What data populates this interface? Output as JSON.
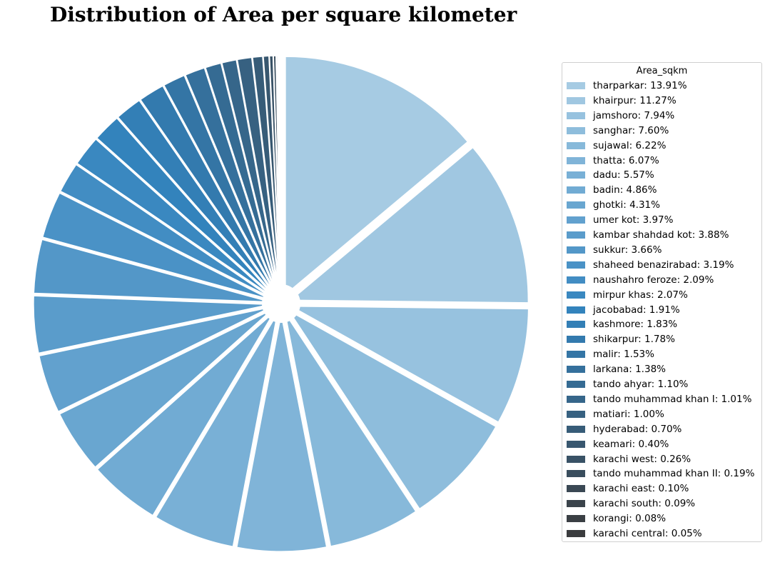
{
  "chart_data": {
    "type": "pie",
    "title": "Distribution of Area per square kilometer",
    "legend_title": "Area_sqkm",
    "legend_placement": "right",
    "slices": [
      {
        "label": "tharparkar",
        "pct_text": "13.91%",
        "value": 13.91,
        "color": "#a6cbe3"
      },
      {
        "label": "khairpur",
        "pct_text": "11.27%",
        "value": 11.27,
        "color": "#a0c7e1"
      },
      {
        "label": "jamshoro",
        "pct_text": "7.94%",
        "value": 7.94,
        "color": "#97c2df"
      },
      {
        "label": "sanghar",
        "pct_text": "7.60%",
        "value": 7.6,
        "color": "#8ebddc"
      },
      {
        "label": "sujawal",
        "pct_text": "6.22%",
        "value": 6.22,
        "color": "#87b9da"
      },
      {
        "label": "thatta",
        "pct_text": "6.07%",
        "value": 6.07,
        "color": "#80b4d8"
      },
      {
        "label": "dadu",
        "pct_text": "5.57%",
        "value": 5.57,
        "color": "#79b0d6"
      },
      {
        "label": "badin",
        "pct_text": "4.86%",
        "value": 4.86,
        "color": "#71abd3"
      },
      {
        "label": "ghotki",
        "pct_text": "4.31%",
        "value": 4.31,
        "color": "#69a6d0"
      },
      {
        "label": "umer kot",
        "pct_text": "3.97%",
        "value": 3.97,
        "color": "#62a1ce"
      },
      {
        "label": "kambar shahdad kot",
        "pct_text": "3.88%",
        "value": 3.88,
        "color": "#5a9ccb"
      },
      {
        "label": "sukkur",
        "pct_text": "3.66%",
        "value": 3.66,
        "color": "#5397c8"
      },
      {
        "label": "shaheed benazirabad",
        "pct_text": "3.19%",
        "value": 3.19,
        "color": "#4a92c6"
      },
      {
        "label": "naushahro feroze",
        "pct_text": "2.09%",
        "value": 2.09,
        "color": "#428dc3"
      },
      {
        "label": "mirpur khas",
        "pct_text": "2.07%",
        "value": 2.07,
        "color": "#3a88c0"
      },
      {
        "label": "jacobabad",
        "pct_text": "1.91%",
        "value": 1.91,
        "color": "#3383bc"
      },
      {
        "label": "kashmore",
        "pct_text": "1.83%",
        "value": 1.83,
        "color": "#337fb6"
      },
      {
        "label": "shikarpur",
        "pct_text": "1.78%",
        "value": 1.78,
        "color": "#337aae"
      },
      {
        "label": "malir",
        "pct_text": "1.53%",
        "value": 1.53,
        "color": "#3475a5"
      },
      {
        "label": "larkana",
        "pct_text": "1.38%",
        "value": 1.38,
        "color": "#35709c"
      },
      {
        "label": "tando ahyar",
        "pct_text": "1.10%",
        "value": 1.1,
        "color": "#356b93"
      },
      {
        "label": "tando muhammad khan I",
        "pct_text": "1.01%",
        "value": 1.01,
        "color": "#36668a"
      },
      {
        "label": "matiari",
        "pct_text": "1.00%",
        "value": 1.0,
        "color": "#376181"
      },
      {
        "label": "hyderabad",
        "pct_text": "0.70%",
        "value": 0.7,
        "color": "#375c78"
      },
      {
        "label": "keamari",
        "pct_text": "0.40%",
        "value": 0.4,
        "color": "#38576f"
      },
      {
        "label": "karachi west",
        "pct_text": "0.26%",
        "value": 0.26,
        "color": "#395266"
      },
      {
        "label": "tando muhammad khan II",
        "pct_text": "0.19%",
        "value": 0.19,
        "color": "#394d5d"
      },
      {
        "label": "karachi east",
        "pct_text": "0.10%",
        "value": 0.1,
        "color": "#3a4854"
      },
      {
        "label": "karachi south",
        "pct_text": "0.09%",
        "value": 0.09,
        "color": "#3a434b"
      },
      {
        "label": "korangi",
        "pct_text": "0.08%",
        "value": 0.08,
        "color": "#3a3f44"
      },
      {
        "label": "karachi central",
        "pct_text": "0.05%",
        "value": 0.05,
        "color": "#3a3c3e"
      }
    ]
  }
}
